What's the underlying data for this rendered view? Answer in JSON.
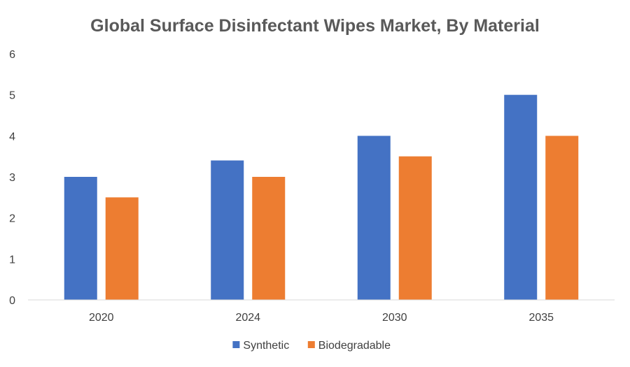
{
  "chart_data": {
    "type": "bar",
    "title": "Global Surface Disinfectant Wipes Market, By Material",
    "xlabel": "",
    "ylabel": "",
    "categories": [
      "2020",
      "2024",
      "2030",
      "2035"
    ],
    "series": [
      {
        "name": "Synthetic",
        "values": [
          3.0,
          3.4,
          4.0,
          5.0
        ],
        "color": "#4472C4"
      },
      {
        "name": "Biodegradable",
        "values": [
          2.5,
          3.0,
          3.5,
          4.0
        ],
        "color": "#ED7D31"
      }
    ],
    "ylim": [
      0,
      6
    ],
    "yticks": [
      "0",
      "1",
      "2",
      "3",
      "4",
      "5",
      "6"
    ],
    "grid": false,
    "legend": "bottom"
  }
}
